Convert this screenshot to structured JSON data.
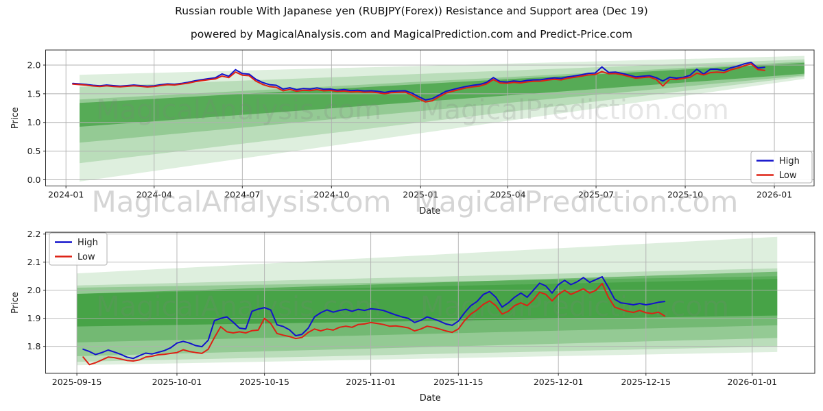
{
  "title": "Russian rouble With Japanese yen (RUBJPY(Forex)) Resistance and Support area (Dec 19)",
  "subtitle": "powered by MagicalAnalysis.com and MagicalPrediction.com and Predict-Price.com",
  "watermark_row_texts": [
    "MagicalAnalysis.com",
    "MagicalPrediction.com"
  ],
  "chart_data": [
    {
      "type": "line",
      "name": "full-history",
      "xlabel": "Date",
      "ylabel": "Price",
      "grid": true,
      "legend": {
        "position": "lower right",
        "items": [
          {
            "label": "High",
            "color": "#1212cc"
          },
          {
            "label": "Low",
            "color": "#dd2114"
          }
        ]
      },
      "watermarks": [
        "MagicalAnalysis.com",
        "MagicalPrediction.com"
      ],
      "x_domain": [
        "2023-12-11",
        "2026-02-11"
      ],
      "y_domain": [
        -0.1075,
        2.2627
      ],
      "x_ticks": [
        {
          "value": "2024-01-01",
          "label": "2024-01"
        },
        {
          "value": "2024-04-01",
          "label": "2024-04"
        },
        {
          "value": "2024-07-01",
          "label": "2024-07"
        },
        {
          "value": "2024-10-01",
          "label": "2024-10"
        },
        {
          "value": "2025-01-01",
          "label": "2025-01"
        },
        {
          "value": "2025-04-01",
          "label": "2025-04"
        },
        {
          "value": "2025-07-01",
          "label": "2025-07"
        },
        {
          "value": "2025-10-01",
          "label": "2025-10"
        },
        {
          "value": "2026-01-01",
          "label": "2026-01"
        }
      ],
      "y_ticks": [
        {
          "value": 0.0,
          "label": "0.0"
        },
        {
          "value": 0.5,
          "label": "0.5"
        },
        {
          "value": 1.0,
          "label": "1.0"
        },
        {
          "value": 1.5,
          "label": "1.5"
        },
        {
          "value": 2.0,
          "label": "2.0"
        }
      ],
      "bands_color": "#008000",
      "bands": [
        {
          "start": "2024-01-15",
          "end": "2026-02-01",
          "top0": 1.83,
          "bot0": -0.03,
          "top1": 2.16,
          "bot1": 1.76,
          "alpha": 0.13
        },
        {
          "start": "2024-01-15",
          "end": "2026-02-01",
          "top0": 1.62,
          "bot0": 0.29,
          "top1": 2.1,
          "bot1": 1.8,
          "alpha": 0.16
        },
        {
          "start": "2024-01-15",
          "end": "2026-02-01",
          "top0": 1.4,
          "bot0": 0.647,
          "top1": 2.06,
          "bot1": 1.82,
          "alpha": 0.2
        },
        {
          "start": "2024-01-15",
          "end": "2026-02-01",
          "top0": 1.34,
          "bot0": 0.925,
          "top1": 2.04,
          "bot1": 1.85,
          "alpha": 0.42
        }
      ],
      "series": [
        {
          "name": "High",
          "color": "#1212cc",
          "start": "2024-01-08",
          "step_days": 7,
          "values": [
            1.68,
            1.672,
            1.662,
            1.648,
            1.64,
            1.652,
            1.642,
            1.632,
            1.642,
            1.652,
            1.642,
            1.632,
            1.64,
            1.658,
            1.672,
            1.665,
            1.68,
            1.7,
            1.725,
            1.745,
            1.762,
            1.778,
            1.845,
            1.805,
            1.92,
            1.852,
            1.842,
            1.752,
            1.695,
            1.658,
            1.648,
            1.582,
            1.605,
            1.572,
            1.592,
            1.582,
            1.602,
            1.578,
            1.582,
            1.562,
            1.572,
            1.555,
            1.562,
            1.548,
            1.552,
            1.542,
            1.522,
            1.545,
            1.548,
            1.552,
            1.512,
            1.448,
            1.392,
            1.415,
            1.478,
            1.542,
            1.572,
            1.602,
            1.628,
            1.648,
            1.662,
            1.698,
            1.782,
            1.712,
            1.705,
            1.722,
            1.712,
            1.732,
            1.742,
            1.745,
            1.762,
            1.775,
            1.768,
            1.795,
            1.812,
            1.832,
            1.855,
            1.862,
            1.968,
            1.872,
            1.878,
            1.855,
            1.825,
            1.795,
            1.805,
            1.815,
            1.782,
            1.722,
            1.788,
            1.772,
            1.785,
            1.822,
            1.928,
            1.842,
            1.928,
            1.928,
            1.902,
            1.952,
            1.982,
            2.022,
            2.048,
            1.948,
            1.962
          ]
        },
        {
          "name": "Low",
          "color": "#dd2114",
          "start": "2024-01-08",
          "step_days": 7,
          "values": [
            1.668,
            1.66,
            1.65,
            1.636,
            1.628,
            1.64,
            1.628,
            1.62,
            1.63,
            1.638,
            1.63,
            1.618,
            1.628,
            1.645,
            1.658,
            1.652,
            1.668,
            1.685,
            1.71,
            1.728,
            1.745,
            1.758,
            1.808,
            1.782,
            1.878,
            1.825,
            1.815,
            1.722,
            1.662,
            1.625,
            1.612,
            1.552,
            1.575,
            1.545,
            1.562,
            1.555,
            1.572,
            1.552,
            1.558,
            1.54,
            1.548,
            1.532,
            1.538,
            1.525,
            1.53,
            1.518,
            1.5,
            1.52,
            1.525,
            1.528,
            1.478,
            1.412,
            1.358,
            1.378,
            1.448,
            1.512,
            1.545,
            1.575,
            1.602,
            1.622,
            1.635,
            1.672,
            1.748,
            1.688,
            1.682,
            1.698,
            1.688,
            1.708,
            1.718,
            1.72,
            1.738,
            1.752,
            1.742,
            1.772,
            1.788,
            1.808,
            1.828,
            1.835,
            1.888,
            1.848,
            1.852,
            1.832,
            1.802,
            1.772,
            1.782,
            1.792,
            1.752,
            1.635,
            1.752,
            1.748,
            1.768,
            1.788,
            1.858,
            1.828,
            1.868,
            1.878,
            1.868,
            1.918,
            1.948,
            1.988,
            2.022,
            1.922,
            1.908
          ]
        }
      ]
    },
    {
      "type": "line",
      "name": "recent-zoom",
      "xlabel": "Date",
      "ylabel": "Price",
      "grid": true,
      "legend": {
        "position": "upper left",
        "items": [
          {
            "label": "High",
            "color": "#1212cc"
          },
          {
            "label": "Low",
            "color": "#dd2114"
          }
        ]
      },
      "watermarks": [
        "MagicalAnalysis.com",
        "MagicalPrediction.com"
      ],
      "x_domain": [
        "2025-09-10",
        "2026-01-11"
      ],
      "y_domain": [
        1.7041,
        2.2066
      ],
      "x_ticks": [
        {
          "value": "2025-09-15",
          "label": "2025-09-15"
        },
        {
          "value": "2025-10-01",
          "label": "2025-10-01"
        },
        {
          "value": "2025-10-15",
          "label": "2025-10-15"
        },
        {
          "value": "2025-11-01",
          "label": "2025-11-01"
        },
        {
          "value": "2025-11-15",
          "label": "2025-11-15"
        },
        {
          "value": "2025-12-01",
          "label": "2025-12-01"
        },
        {
          "value": "2025-12-15",
          "label": "2025-12-15"
        },
        {
          "value": "2026-01-01",
          "label": "2026-01-01"
        }
      ],
      "y_ticks": [
        {
          "value": 1.8,
          "label": "1.8"
        },
        {
          "value": 1.9,
          "label": "1.9"
        },
        {
          "value": 2.0,
          "label": "2.0"
        },
        {
          "value": 2.1,
          "label": "2.1"
        },
        {
          "value": 2.2,
          "label": "2.2"
        }
      ],
      "bands_color": "#008000",
      "bands": [
        {
          "start": "2025-09-15",
          "end": "2026-01-05",
          "top0": 2.06,
          "bot0": 1.733,
          "top1": 2.19,
          "bot1": 1.78,
          "alpha": 0.13
        },
        {
          "start": "2025-09-15",
          "end": "2026-01-05",
          "top0": 2.017,
          "bot0": 1.745,
          "top1": 2.078,
          "bot1": 1.8,
          "alpha": 0.16
        },
        {
          "start": "2025-09-15",
          "end": "2026-01-05",
          "top0": 2.009,
          "bot0": 1.765,
          "top1": 2.05,
          "bot1": 1.83,
          "alpha": 0.2
        },
        {
          "start": "2025-09-15",
          "end": "2026-01-05",
          "top0": 1.987,
          "bot0": 1.814,
          "top1": 2.04,
          "bot1": 1.875,
          "alpha": 0.22
        },
        {
          "start": "2025-09-15",
          "end": "2026-01-05",
          "top0": 1.987,
          "bot0": 1.871,
          "top1": 2.066,
          "bot1": 1.91,
          "alpha": 0.38
        }
      ],
      "series": [
        {
          "name": "High",
          "color": "#1212cc",
          "start": "2025-09-16",
          "step_days": 1,
          "values": [
            1.79,
            1.782,
            1.771,
            1.778,
            1.787,
            1.78,
            1.772,
            1.762,
            1.757,
            1.767,
            1.776,
            1.773,
            1.779,
            1.785,
            1.795,
            1.812,
            1.818,
            1.812,
            1.803,
            1.799,
            1.822,
            1.892,
            1.9,
            1.905,
            1.886,
            1.865,
            1.862,
            1.925,
            1.933,
            1.938,
            1.93,
            1.877,
            1.871,
            1.859,
            1.838,
            1.843,
            1.865,
            1.905,
            1.92,
            1.93,
            1.922,
            1.928,
            1.932,
            1.925,
            1.932,
            1.928,
            1.934,
            1.932,
            1.928,
            1.92,
            1.912,
            1.905,
            1.9,
            1.885,
            1.893,
            1.905,
            1.898,
            1.89,
            1.88,
            1.875,
            1.89,
            1.92,
            1.945,
            1.96,
            1.985,
            1.995,
            1.975,
            1.94,
            1.955,
            1.975,
            1.99,
            1.975,
            2.0,
            2.025,
            2.015,
            1.99,
            2.02,
            2.035,
            2.02,
            2.03,
            2.045,
            2.028,
            2.038,
            2.048,
            2.01,
            1.968,
            1.955,
            1.952,
            1.948,
            1.953,
            1.948,
            1.952,
            1.957,
            1.96
          ]
        },
        {
          "name": "Low",
          "color": "#dd2114",
          "start": "2025-09-16",
          "step_days": 1,
          "values": [
            1.762,
            1.735,
            1.742,
            1.752,
            1.762,
            1.76,
            1.755,
            1.75,
            1.748,
            1.752,
            1.762,
            1.765,
            1.77,
            1.772,
            1.775,
            1.778,
            1.788,
            1.782,
            1.778,
            1.775,
            1.79,
            1.832,
            1.87,
            1.852,
            1.848,
            1.852,
            1.848,
            1.856,
            1.858,
            1.9,
            1.882,
            1.846,
            1.84,
            1.835,
            1.828,
            1.832,
            1.85,
            1.862,
            1.855,
            1.862,
            1.858,
            1.868,
            1.872,
            1.868,
            1.878,
            1.88,
            1.885,
            1.882,
            1.878,
            1.872,
            1.873,
            1.87,
            1.866,
            1.855,
            1.862,
            1.872,
            1.868,
            1.862,
            1.855,
            1.85,
            1.862,
            1.892,
            1.915,
            1.93,
            1.95,
            1.962,
            1.945,
            1.915,
            1.925,
            1.945,
            1.955,
            1.945,
            1.965,
            1.993,
            1.985,
            1.962,
            1.985,
            2.0,
            1.985,
            1.995,
            2.005,
            1.99,
            2.0,
            2.024,
            1.975,
            1.94,
            1.932,
            1.925,
            1.921,
            1.928,
            1.92,
            1.917,
            1.922,
            1.908
          ]
        }
      ]
    }
  ]
}
